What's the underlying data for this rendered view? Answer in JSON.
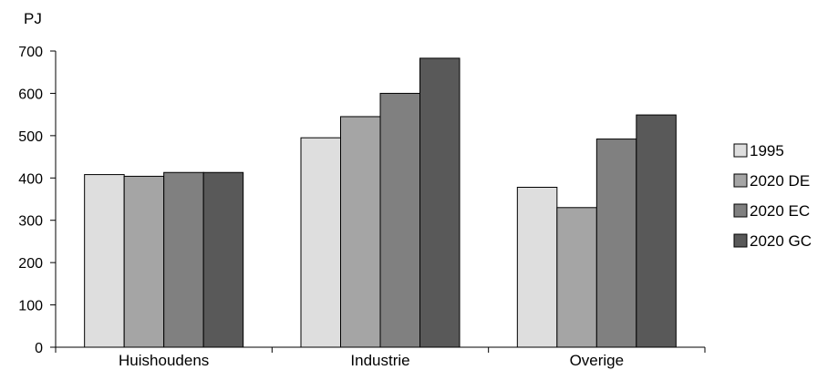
{
  "chart_data": {
    "type": "bar",
    "title": "",
    "unit_label": "PJ",
    "xlabel": "",
    "ylabel": "",
    "categories": [
      "Huishoudens",
      "Industrie",
      "Overige"
    ],
    "series": [
      {
        "name": "1995",
        "color": "#dedede",
        "values": [
          408,
          495,
          378
        ]
      },
      {
        "name": "2020 DE",
        "color": "#a5a5a5",
        "values": [
          404,
          545,
          330
        ]
      },
      {
        "name": "2020 EC",
        "color": "#808080",
        "values": [
          413,
          600,
          492
        ]
      },
      {
        "name": "2020 GC",
        "color": "#595959",
        "values": [
          413,
          683,
          549
        ]
      }
    ],
    "ylim": [
      0,
      700
    ],
    "yticks": [
      0,
      100,
      200,
      300,
      400,
      500,
      600,
      700
    ],
    "grid": false,
    "legend_position": "right"
  }
}
